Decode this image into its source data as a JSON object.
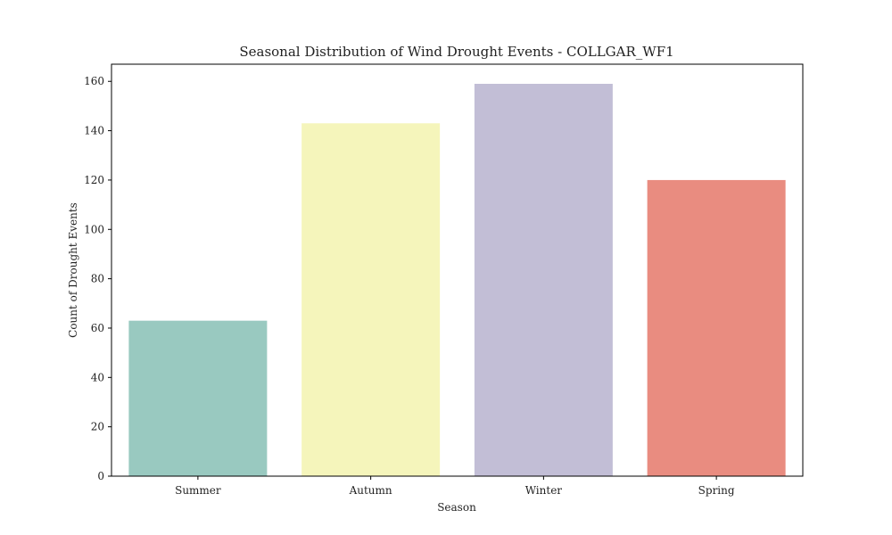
{
  "chart_data": {
    "type": "bar",
    "title": "Seasonal Distribution of Wind Drought Events - COLLGAR_WF1",
    "xlabel": "Season",
    "ylabel": "Count of Drought Events",
    "categories": [
      "Summer",
      "Autumn",
      "Winter",
      "Spring"
    ],
    "values": [
      63,
      143,
      159,
      120
    ],
    "colors": [
      "#99c9c0",
      "#f5f5bb",
      "#c2bed6",
      "#e98c80"
    ],
    "ylim": [
      0,
      166.95
    ],
    "yticks": [
      0,
      20,
      40,
      60,
      80,
      100,
      120,
      140,
      160
    ],
    "grid": false,
    "legend": "none"
  }
}
